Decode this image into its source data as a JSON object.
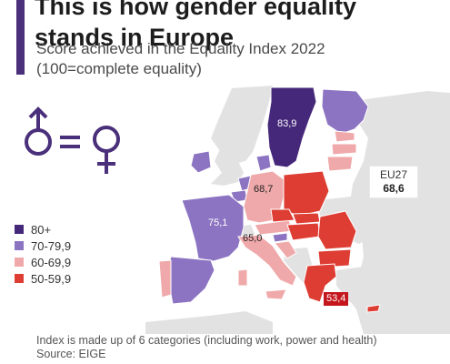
{
  "header": {
    "title_line1": "This is how gender equality",
    "title_line2": "stands in Europe",
    "subtitle_line1": "Score achieved in the Equality Index 2022",
    "subtitle_line2": "(100=complete equality)"
  },
  "legend": [
    {
      "label": "80+",
      "color": "#45287a"
    },
    {
      "label": "70-79,9",
      "color": "#8c74c2"
    },
    {
      "label": "60-69,9",
      "color": "#f0a9aa"
    },
    {
      "label": "50-59,9",
      "color": "#de3d33"
    }
  ],
  "map_labels": {
    "sweden": "83,9",
    "germany": "68,7",
    "france": "75,1",
    "italy": "65,0",
    "greece": "53,4"
  },
  "eu_summary": {
    "name": "EU27",
    "value": "68,6"
  },
  "footer": {
    "note": "Index is made up of 6 categories (including work, power and health)",
    "source": "Source: EIGE"
  }
}
